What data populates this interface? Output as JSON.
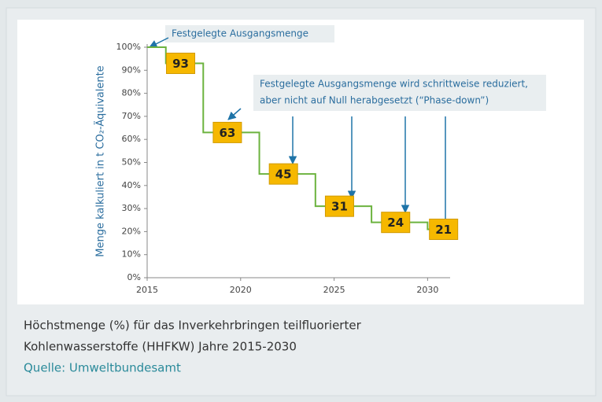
{
  "chart_data": {
    "type": "step",
    "y_axis_label": "Menge kalkuliert in t CO₂-Äquivalente",
    "x": [
      2015,
      2016,
      2018,
      2021,
      2024,
      2027,
      2030
    ],
    "values": [
      100,
      93,
      63,
      45,
      31,
      24,
      21
    ],
    "color": "#6cb33f",
    "label_color": "#f6b800",
    "xlim": [
      2015,
      2030.7
    ],
    "xticks": [
      2015,
      2020,
      2025,
      2030
    ],
    "ylim": [
      0,
      100
    ],
    "yticks": [
      {
        "value": 0,
        "label": "0%"
      },
      {
        "value": 10,
        "label": "10%"
      },
      {
        "value": 20,
        "label": "20%"
      },
      {
        "value": 30,
        "label": "30%"
      },
      {
        "value": 40,
        "label": "40%"
      },
      {
        "value": 50,
        "label": "50%"
      },
      {
        "value": 60,
        "label": "60%"
      },
      {
        "value": 70,
        "label": "70%"
      },
      {
        "value": 80,
        "label": "80%"
      },
      {
        "value": 90,
        "label": "90%"
      },
      {
        "value": 100,
        "label": "100%"
      }
    ],
    "annotations": [
      "Festgelegte Ausgangsmenge",
      "Festgelegte Ausgangsmenge wird schrittweise reduziert,",
      "aber nicht auf Null herabgesetzt (“Phase-down”)"
    ]
  },
  "caption": {
    "lines": [
      "Höchstmenge (%) für das Inverkehrbringen teilfluorierter",
      "Kohlenwasserstoffe (HHFKW) Jahre 2015-2030"
    ],
    "source": "Quelle: Umweltbundesamt"
  }
}
